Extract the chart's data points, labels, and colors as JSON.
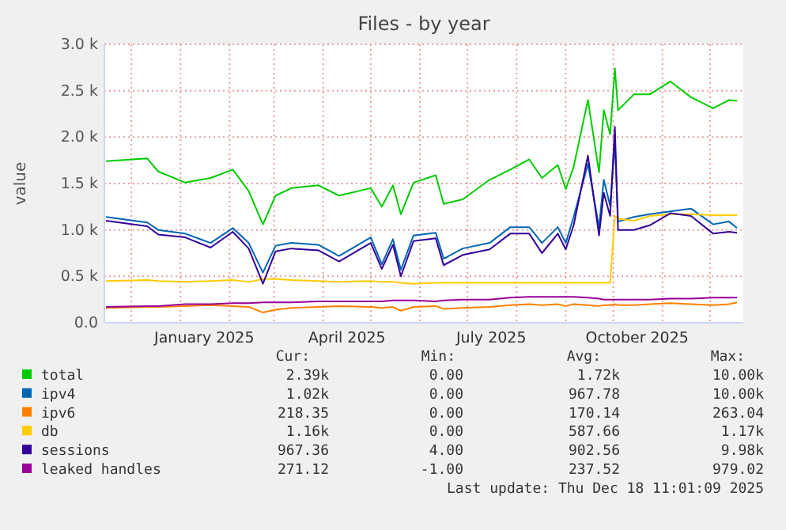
{
  "chart_data": {
    "type": "line",
    "title": "Files - by year",
    "ylabel": "value",
    "x": [
      "2024-11-15",
      "2024-12-11",
      "2024-12-18",
      "2025-01-04",
      "2025-01-20",
      "2025-02-03",
      "2025-02-13",
      "2025-02-22",
      "2025-03-02",
      "2025-03-12",
      "2025-03-29",
      "2025-04-11",
      "2025-05-01",
      "2025-05-08",
      "2025-05-15",
      "2025-05-20",
      "2025-05-28",
      "2025-06-11",
      "2025-06-16",
      "2025-06-28",
      "2025-07-15",
      "2025-07-28",
      "2025-08-09",
      "2025-08-17",
      "2025-08-27",
      "2025-09-01",
      "2025-09-06",
      "2025-09-15",
      "2025-09-22",
      "2025-09-25",
      "2025-09-29",
      "2025-10-02",
      "2025-10-04",
      "2025-10-14",
      "2025-10-24",
      "2025-11-06",
      "2025-11-19",
      "2025-12-03",
      "2025-12-13",
      "2025-12-18"
    ],
    "series": [
      {
        "name": "total",
        "color": "#00cc00",
        "values": [
          1740,
          1770,
          1630,
          1510,
          1560,
          1650,
          1420,
          1060,
          1370,
          1450,
          1480,
          1370,
          1450,
          1250,
          1480,
          1170,
          1510,
          1590,
          1280,
          1330,
          1540,
          1650,
          1760,
          1560,
          1700,
          1440,
          1680,
          2400,
          1620,
          2290,
          2030,
          2740,
          2290,
          2460,
          2460,
          2600,
          2430,
          2310,
          2400,
          2390
        ]
      },
      {
        "name": "ipv4",
        "color": "#0066b3",
        "values": [
          1140,
          1080,
          1000,
          960,
          860,
          1020,
          860,
          540,
          830,
          860,
          840,
          720,
          920,
          630,
          900,
          570,
          940,
          970,
          690,
          800,
          860,
          1030,
          1030,
          860,
          1030,
          860,
          1140,
          1710,
          1030,
          1540,
          1260,
          1940,
          1090,
          1140,
          1170,
          1200,
          1230,
          1060,
          1090,
          1020
        ]
      },
      {
        "name": "ipv6",
        "color": "#ff8000",
        "values": [
          160,
          170,
          170,
          180,
          190,
          180,
          170,
          110,
          140,
          160,
          170,
          180,
          170,
          160,
          170,
          130,
          170,
          180,
          150,
          160,
          170,
          190,
          200,
          190,
          200,
          180,
          200,
          190,
          180,
          190,
          190,
          200,
          190,
          190,
          200,
          210,
          200,
          190,
          200,
          220
        ]
      },
      {
        "name": "db",
        "color": "#ffcc00",
        "values": [
          450,
          460,
          450,
          440,
          450,
          460,
          440,
          470,
          470,
          460,
          450,
          440,
          450,
          440,
          440,
          430,
          420,
          430,
          430,
          430,
          430,
          430,
          430,
          430,
          430,
          430,
          430,
          430,
          430,
          430,
          430,
          1150,
          1120,
          1100,
          1150,
          1170,
          1170,
          1160,
          1160,
          1160
        ]
      },
      {
        "name": "sessions",
        "color": "#330099",
        "values": [
          1100,
          1040,
          950,
          920,
          810,
          980,
          800,
          420,
          770,
          800,
          780,
          660,
          860,
          580,
          840,
          500,
          880,
          910,
          620,
          730,
          790,
          960,
          960,
          750,
          960,
          790,
          1050,
          1800,
          940,
          1400,
          1150,
          2110,
          1000,
          1000,
          1050,
          1180,
          1150,
          960,
          980,
          970
        ]
      },
      {
        "name": "leaked handles",
        "color": "#990099",
        "values": [
          170,
          180,
          180,
          200,
          200,
          210,
          210,
          220,
          220,
          220,
          230,
          230,
          230,
          230,
          240,
          240,
          240,
          230,
          240,
          250,
          250,
          270,
          280,
          280,
          280,
          280,
          280,
          270,
          260,
          250,
          250,
          250,
          250,
          250,
          250,
          260,
          260,
          270,
          270,
          270
        ]
      }
    ],
    "xlim": [
      "2024-11-14",
      "2025-12-22"
    ],
    "xticks": [
      {
        "value": "2024-12-01",
        "label": null
      },
      {
        "value": "2025-01-01",
        "label": null
      },
      {
        "value": "2025-01-16",
        "label": "January 2025"
      },
      {
        "value": "2025-02-01",
        "label": null
      },
      {
        "value": "2025-03-01",
        "label": null
      },
      {
        "value": "2025-04-01",
        "label": null
      },
      {
        "value": "2025-04-16",
        "label": "April 2025"
      },
      {
        "value": "2025-05-01",
        "label": null
      },
      {
        "value": "2025-06-01",
        "label": null
      },
      {
        "value": "2025-07-01",
        "label": null
      },
      {
        "value": "2025-07-16",
        "label": "July 2025"
      },
      {
        "value": "2025-08-01",
        "label": null
      },
      {
        "value": "2025-09-01",
        "label": null
      },
      {
        "value": "2025-10-01",
        "label": null
      },
      {
        "value": "2025-10-16",
        "label": "October 2025"
      },
      {
        "value": "2025-11-01",
        "label": null
      },
      {
        "value": "2025-12-01",
        "label": null
      }
    ],
    "ylim": [
      0,
      3000
    ],
    "yticks": [
      {
        "value": 0,
        "label": "0.0"
      },
      {
        "value": 500,
        "label": "0.5 k"
      },
      {
        "value": 1000,
        "label": "1.0 k"
      },
      {
        "value": 1500,
        "label": "1.5 k"
      },
      {
        "value": 2000,
        "label": "2.0 k"
      },
      {
        "value": 2500,
        "label": "2.5 k"
      },
      {
        "value": 3000,
        "label": "3.0 k"
      }
    ],
    "grid": true,
    "legend": "bottom",
    "line_style": "solid",
    "marker": "none",
    "annotations": [
      "Cur:",
      "Min:",
      "Avg:",
      "Max:",
      "2.39k",
      "0.00",
      "1.72k",
      "10.00k",
      "1.02k",
      "0.00",
      "967.78",
      "10.00k",
      "218.35",
      "0.00",
      "170.14",
      "263.04",
      "1.16k",
      "0.00",
      "587.66",
      "1.17k",
      "967.36",
      "4.00",
      "902.56",
      "9.98k",
      "271.12",
      "-1.00",
      "237.52",
      "979.02",
      "Last update: Thu Dec 18 11:01:09 2025"
    ]
  }
}
